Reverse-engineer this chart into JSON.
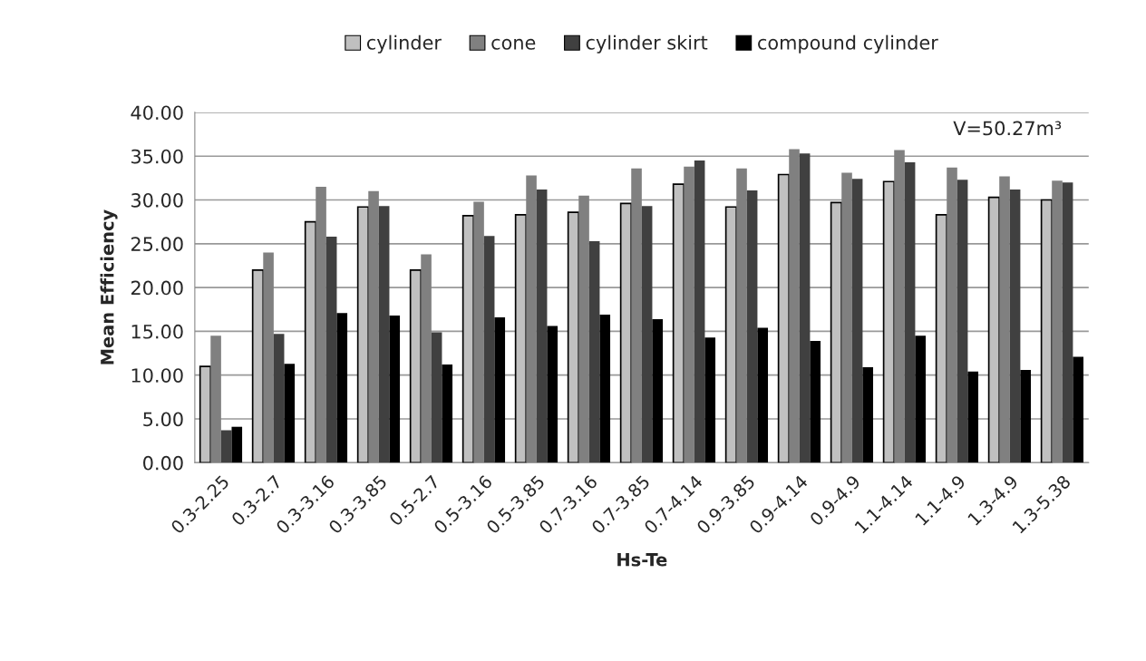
{
  "chart_data": {
    "type": "bar",
    "xlabel": "Hs-Te",
    "ylabel": "Mean Efficiency",
    "categories": [
      "0.3-2.25",
      "0.3-2.7",
      "0.3-3.16",
      "0.3-3.85",
      "0.5-2.7",
      "0.5-3.16",
      "0.5-3.85",
      "0.7-3.16",
      "0.7-3.85",
      "0.7-4.14",
      "0.9-3.85",
      "0.9-4.14",
      "0.9-4.9",
      "1.1-4.14",
      "1.1-4.9",
      "1.3-4.9",
      "1.3-5.38"
    ],
    "series": [
      {
        "name": "cylinder",
        "color": "#c0c0c0",
        "values": [
          11,
          22,
          27.5,
          29.2,
          22,
          28.2,
          28.3,
          28.6,
          29.6,
          31.8,
          29.2,
          32.9,
          29.7,
          32.1,
          28.3,
          30.3,
          30.0
        ]
      },
      {
        "name": "cone",
        "color": "#808080",
        "values": [
          14.5,
          24,
          31.5,
          31,
          23.8,
          29.8,
          32.8,
          30.5,
          33.6,
          33.8,
          33.6,
          35.8,
          33.1,
          35.7,
          33.7,
          32.7,
          32.2
        ]
      },
      {
        "name": "cylinder skirt",
        "color": "#404040",
        "values": [
          3.7,
          14.7,
          25.8,
          29.3,
          14.9,
          25.9,
          31.2,
          25.3,
          29.3,
          34.5,
          31.1,
          35.3,
          32.4,
          34.3,
          32.3,
          31.2,
          32.0
        ]
      },
      {
        "name": "compound cylinder",
        "color": "#000000",
        "values": [
          4.1,
          11.3,
          17.1,
          16.8,
          11.2,
          16.6,
          15.6,
          16.9,
          16.4,
          14.3,
          15.4,
          13.9,
          10.9,
          14.5,
          10.4,
          10.6,
          12.1
        ]
      }
    ],
    "ylim": [
      0,
      40
    ],
    "yticks": [
      {
        "value": 0,
        "label": "0.00"
      },
      {
        "value": 5,
        "label": "5.00"
      },
      {
        "value": 10,
        "label": "10.00"
      },
      {
        "value": 15,
        "label": "15.00"
      },
      {
        "value": 20,
        "label": "20.00"
      },
      {
        "value": 25,
        "label": "25.00"
      },
      {
        "value": 30,
        "label": "30.00"
      },
      {
        "value": 35,
        "label": "35.00"
      },
      {
        "value": 40,
        "label": "40.00"
      }
    ],
    "grid": "y",
    "legend": "top",
    "annotations": [
      "V=50.27m³"
    ]
  }
}
